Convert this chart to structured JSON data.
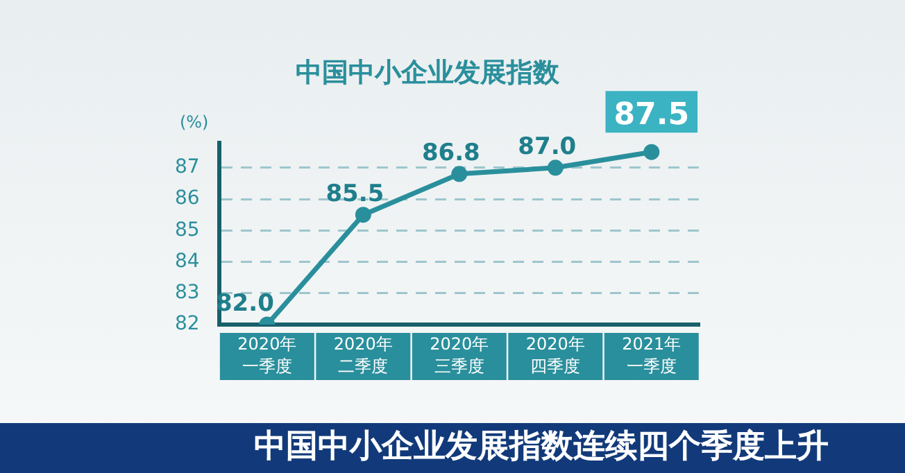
{
  "chart_data": {
    "type": "line",
    "title": "中国中小企业发展指数",
    "ylabel": "(%)",
    "categories": [
      "2020年一季度",
      "2020年二季度",
      "2020年三季度",
      "2020年四季度",
      "2021年一季度"
    ],
    "series": [
      {
        "color": "#2a8f9c",
        "values": [
          82.0,
          85.5,
          86.8,
          87.0,
          87.5
        ]
      }
    ],
    "value_labels": [
      "82.0",
      "85.5",
      "86.8",
      "87.0",
      "87.5"
    ],
    "ylim": [
      82,
      87.8
    ],
    "yticks": [
      82,
      83,
      84,
      85,
      86,
      87
    ],
    "grid": "y",
    "line_style": "solid",
    "marker": "circle",
    "legend": false,
    "annotations": [
      "中国中小企业发展指数连续四个季度上升"
    ]
  }
}
